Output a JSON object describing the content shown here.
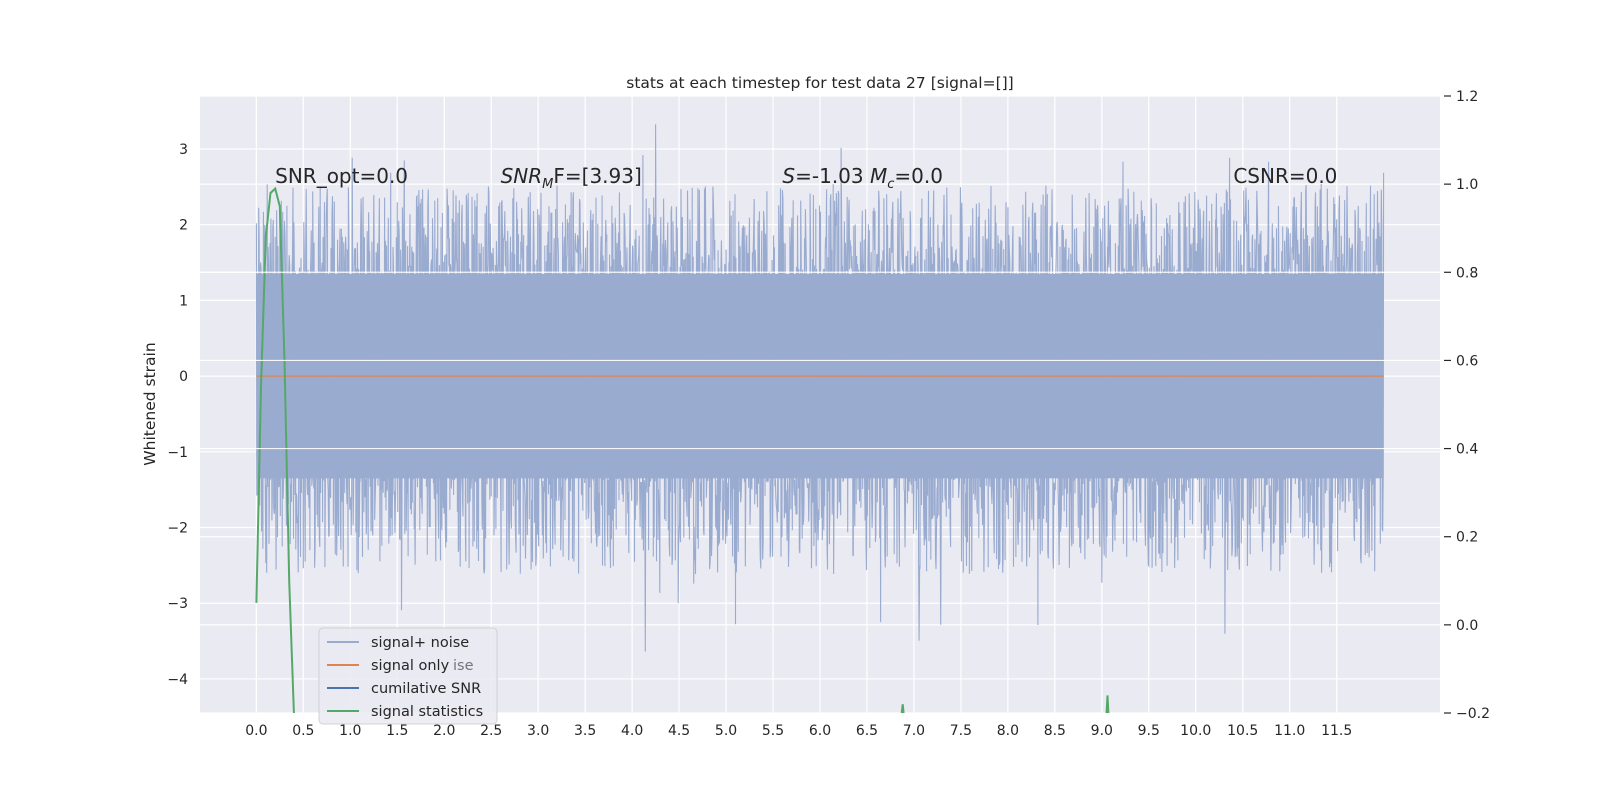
{
  "chart_data": {
    "type": "line",
    "title": "stats at each timestep for test data 27 [signal=[]]",
    "xlabel": "",
    "ylabel": "Whitened strain",
    "xlim": [
      -0.6,
      12.6
    ],
    "ylim": [
      -4.45,
      3.7
    ],
    "y2lim": [
      -0.2,
      1.2
    ],
    "x_ticks": [
      "0.0",
      "0.5",
      "1.0",
      "1.5",
      "2.0",
      "2.5",
      "3.0",
      "3.5",
      "4.0",
      "4.5",
      "5.0",
      "5.5",
      "6.0",
      "6.5",
      "7.0",
      "7.5",
      "8.0",
      "8.5",
      "9.0",
      "9.5",
      "10.0",
      "10.5",
      "11.0",
      "11.5"
    ],
    "y_ticks": [
      3,
      2,
      1,
      0,
      -1,
      -2,
      -3,
      -4
    ],
    "y_tick_labels": [
      "3",
      "2",
      "1",
      "0",
      "−1",
      "−2",
      "−3",
      "−4"
    ],
    "y2_ticks": [
      1.2,
      1.0,
      0.8,
      0.6,
      0.4,
      0.2,
      0.0,
      -0.2
    ],
    "y2_tick_labels": [
      "1.2",
      "1.0",
      "0.8",
      "0.6",
      "0.4",
      "0.2",
      "0.0",
      "−0.2"
    ],
    "grid": true,
    "legend_position": "lower-left",
    "annotations": [
      {
        "x": 0.2,
        "y": 2.55,
        "text": "SNR_opt=0.0"
      },
      {
        "x": 2.6,
        "y": 2.55,
        "text": "SNRₘF=[3.93]",
        "base": "SNR",
        "sub": "M",
        "rest": "F=[3.93]"
      },
      {
        "x": 5.6,
        "y": 2.55,
        "text": "S=-1.03 Mᴄ=0.0",
        "base": "S",
        "mid": "=-1.03 ",
        "base2": "M",
        "sub2": "c",
        "rest": "=0.0"
      },
      {
        "x": 10.4,
        "y": 2.55,
        "text": "CSNR=0.0"
      }
    ],
    "series": [
      {
        "name": "signal+ noise",
        "color": "#9aabd0",
        "kind": "noise",
        "x_range": [
          0.0,
          12.0
        ],
        "envelope_hi": 1.35,
        "envelope_lo": -1.35,
        "peak_max": 3.33,
        "peak_min": -3.65
      },
      {
        "name": "signal only",
        "color": "#dd8452",
        "kind": "line",
        "x": [
          0.0,
          12.0
        ],
        "y": [
          0.0,
          0.0
        ]
      },
      {
        "name": "cumilative SNR",
        "color": "#4c72b0",
        "kind": "none"
      },
      {
        "name": "signal statistics",
        "color": "#55a868",
        "kind": "line_right_axis",
        "x": [
          0.0,
          0.05,
          0.1,
          0.15,
          0.2,
          0.25,
          0.3,
          0.35,
          0.4,
          6.87,
          6.88,
          6.89,
          9.05,
          9.06,
          9.07
        ],
        "y": [
          0.05,
          0.55,
          0.88,
          0.98,
          0.99,
          0.95,
          0.6,
          0.1,
          -0.2,
          -0.2,
          -0.18,
          -0.2,
          -0.2,
          -0.16,
          -0.2
        ]
      }
    ],
    "legend_ghost_text": "ise"
  }
}
